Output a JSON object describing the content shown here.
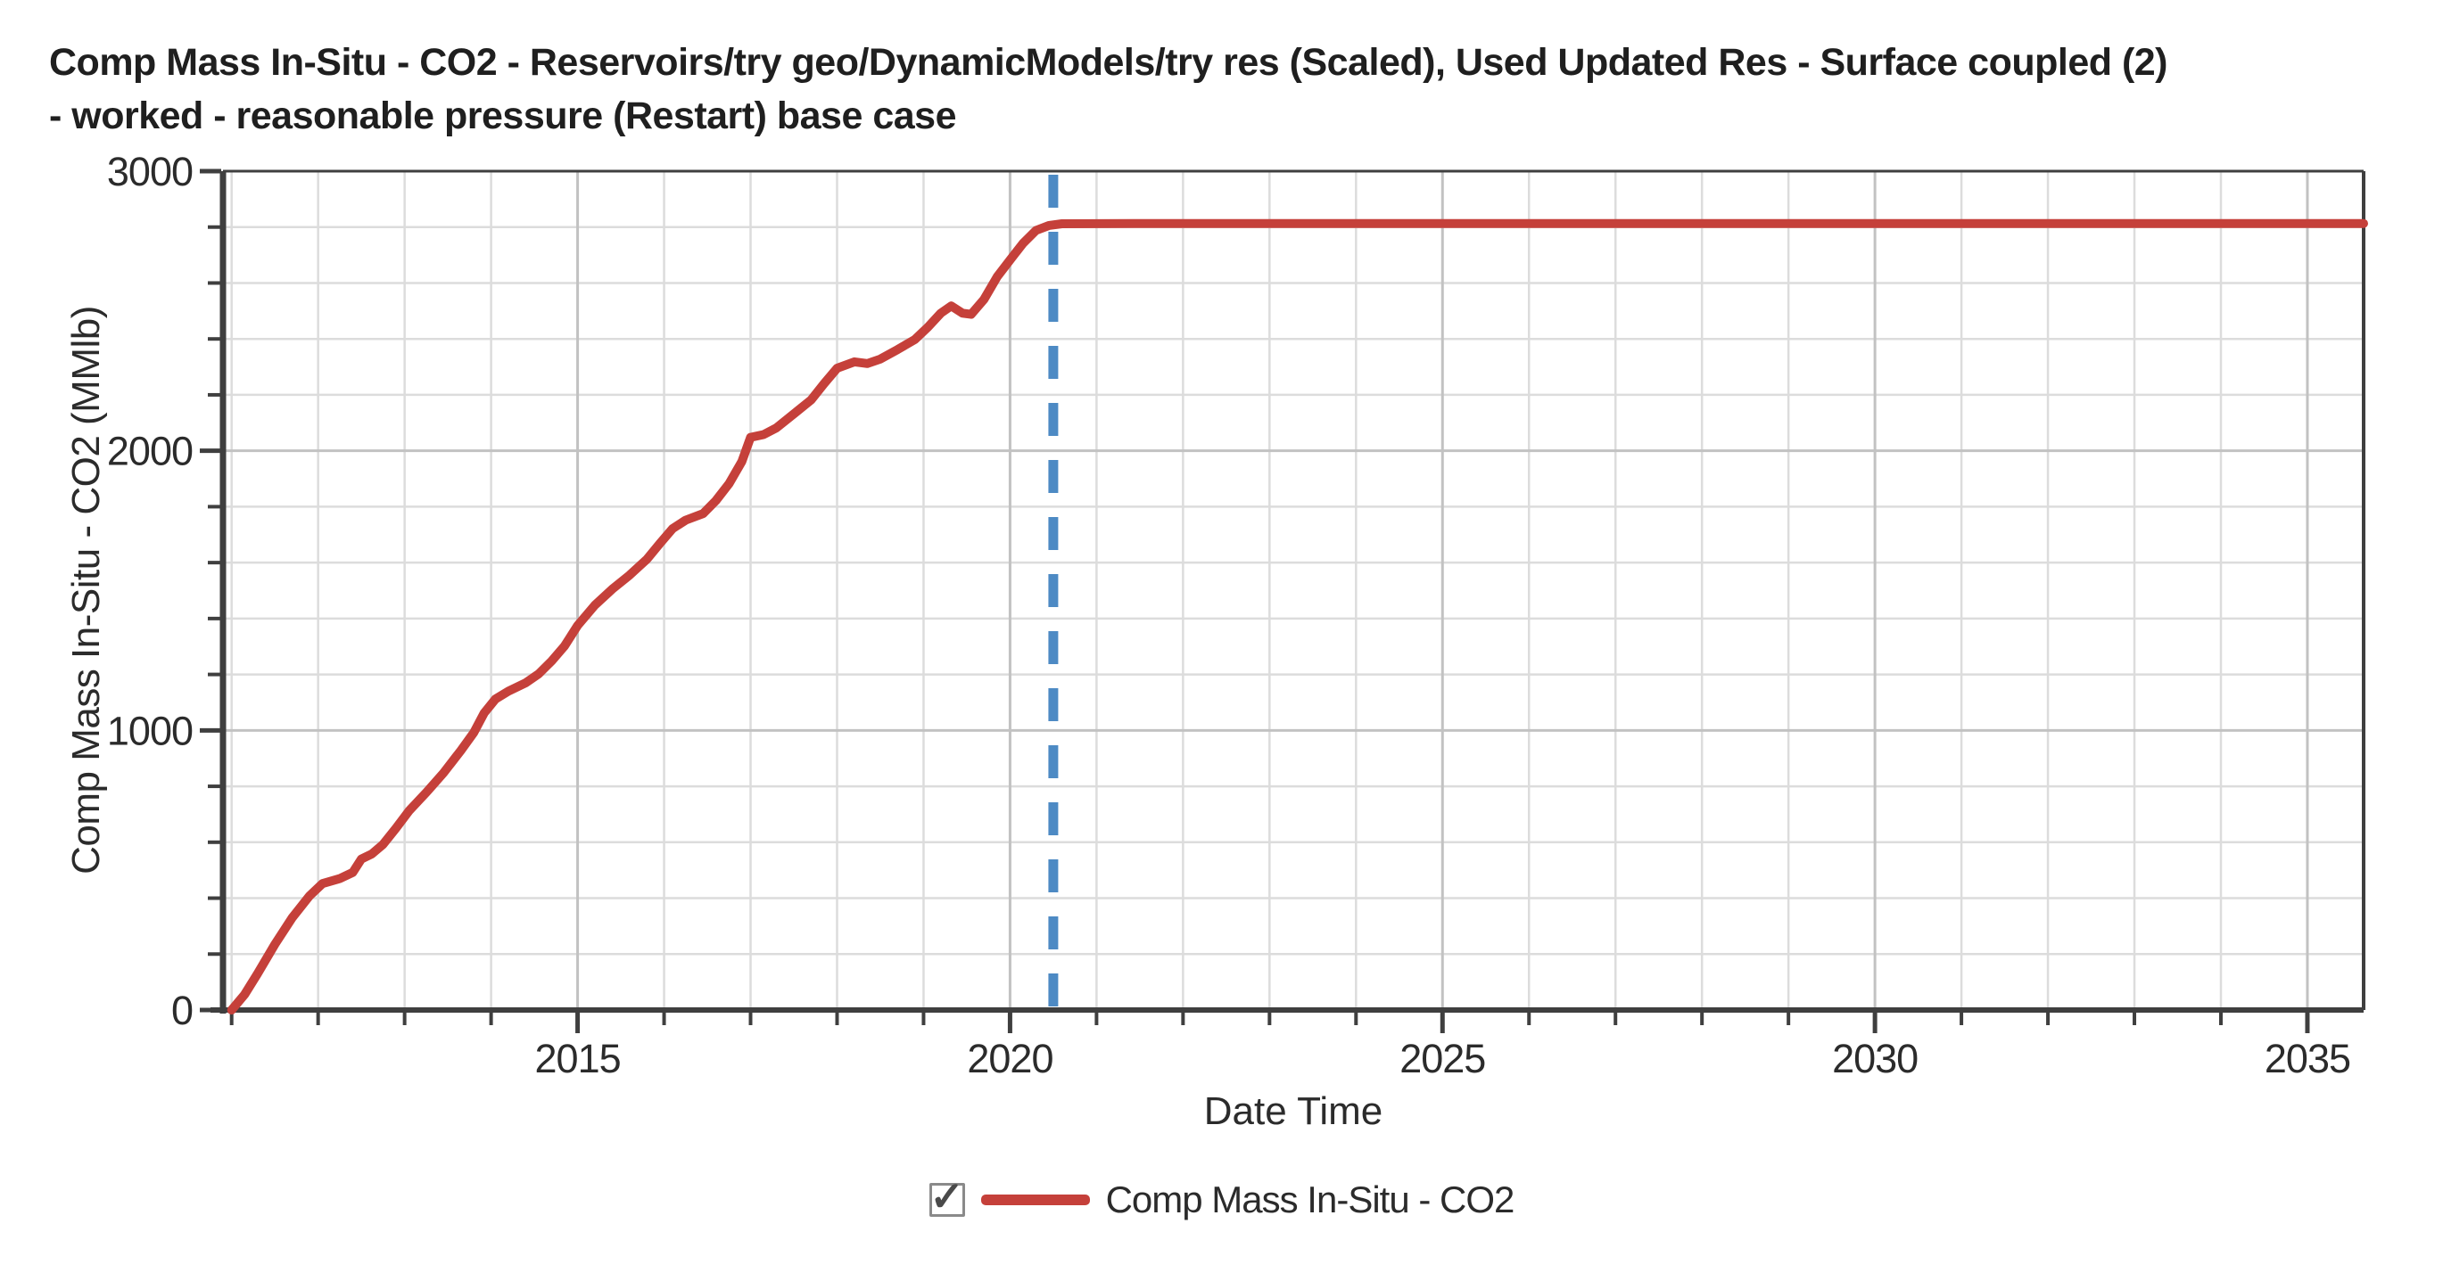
{
  "title": {
    "line1": "Comp Mass In-Situ - CO2 - Reservoirs/try geo/DynamicModels/try res (Scaled), Used Updated Res - Surface coupled (2)",
    "line2": "- worked - reasonable pressure (Restart) base case"
  },
  "legend": {
    "checkbox_checked": true,
    "check_glyph": "✓",
    "label": "Comp Mass In-Situ - CO2"
  },
  "colors": {
    "series_red": "#c5403a",
    "vline_blue": "#4d8ac4",
    "grid_minor": "#dcdcdc",
    "grid_major": "#c2c2c2",
    "spine": "#3f3f3f",
    "tick_text": "#2b2b2b"
  },
  "chart_data": {
    "type": "line",
    "title": "Comp Mass In-Situ - CO2 - Reservoirs/try geo/DynamicModels/try res (Scaled), Used Updated Res - Surface coupled (2) - worked - reasonable pressure (Restart) base case",
    "xlabel": "Date Time",
    "ylabel": "Comp Mass In-Situ - CO2 (MMlb)",
    "xlim": [
      2010.9,
      2035.65
    ],
    "ylim": [
      0,
      3000
    ],
    "x_ticks": [
      2015,
      2020,
      2025,
      2030,
      2035
    ],
    "y_ticks": [
      0,
      1000,
      2000,
      3000
    ],
    "x_minor_step": 1,
    "y_minor_step": 200,
    "grid": true,
    "legend_position": "bottom-center",
    "annotations": [
      {
        "type": "vline",
        "x": 2020.5,
        "style": "dashed",
        "color_key": "vline_blue"
      }
    ],
    "series": [
      {
        "name": "Comp Mass In-Situ - CO2",
        "color_key": "series_red",
        "points": [
          [
            2011.0,
            0
          ],
          [
            2011.15,
            55
          ],
          [
            2011.3,
            130
          ],
          [
            2011.5,
            235
          ],
          [
            2011.7,
            330
          ],
          [
            2011.9,
            408
          ],
          [
            2012.05,
            452
          ],
          [
            2012.25,
            470
          ],
          [
            2012.4,
            492
          ],
          [
            2012.5,
            540
          ],
          [
            2012.62,
            558
          ],
          [
            2012.75,
            592
          ],
          [
            2012.9,
            650
          ],
          [
            2013.05,
            712
          ],
          [
            2013.25,
            778
          ],
          [
            2013.45,
            848
          ],
          [
            2013.65,
            928
          ],
          [
            2013.8,
            992
          ],
          [
            2013.92,
            1062
          ],
          [
            2014.05,
            1112
          ],
          [
            2014.2,
            1140
          ],
          [
            2014.4,
            1170
          ],
          [
            2014.55,
            1202
          ],
          [
            2014.7,
            1248
          ],
          [
            2014.85,
            1302
          ],
          [
            2015.0,
            1375
          ],
          [
            2015.2,
            1448
          ],
          [
            2015.4,
            1505
          ],
          [
            2015.6,
            1555
          ],
          [
            2015.8,
            1612
          ],
          [
            2015.95,
            1668
          ],
          [
            2016.1,
            1722
          ],
          [
            2016.25,
            1752
          ],
          [
            2016.45,
            1775
          ],
          [
            2016.6,
            1822
          ],
          [
            2016.75,
            1882
          ],
          [
            2016.9,
            1962
          ],
          [
            2017.0,
            2048
          ],
          [
            2017.15,
            2058
          ],
          [
            2017.3,
            2082
          ],
          [
            2017.5,
            2132
          ],
          [
            2017.7,
            2182
          ],
          [
            2017.85,
            2240
          ],
          [
            2018.0,
            2295
          ],
          [
            2018.2,
            2318
          ],
          [
            2018.35,
            2312
          ],
          [
            2018.5,
            2328
          ],
          [
            2018.7,
            2362
          ],
          [
            2018.9,
            2398
          ],
          [
            2019.05,
            2442
          ],
          [
            2019.2,
            2492
          ],
          [
            2019.32,
            2518
          ],
          [
            2019.45,
            2492
          ],
          [
            2019.55,
            2488
          ],
          [
            2019.7,
            2542
          ],
          [
            2019.85,
            2622
          ],
          [
            2020.0,
            2682
          ],
          [
            2020.15,
            2742
          ],
          [
            2020.3,
            2788
          ],
          [
            2020.45,
            2806
          ],
          [
            2020.6,
            2812
          ],
          [
            2021.5,
            2813
          ],
          [
            2025.0,
            2813
          ],
          [
            2030.0,
            2813
          ],
          [
            2035.65,
            2813
          ]
        ]
      }
    ]
  }
}
